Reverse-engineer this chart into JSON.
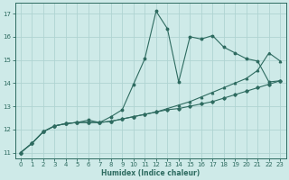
{
  "xlabel": "Humidex (Indice chaleur)",
  "ylabel": "",
  "bg_color": "#ceeae8",
  "grid_color": "#afd4d2",
  "line_color": "#2e6b60",
  "xlim": [
    -0.5,
    23.5
  ],
  "ylim": [
    10.75,
    17.45
  ],
  "xticks": [
    0,
    1,
    2,
    3,
    4,
    5,
    6,
    7,
    8,
    9,
    10,
    11,
    12,
    13,
    14,
    15,
    16,
    17,
    18,
    19,
    20,
    21,
    22,
    23
  ],
  "yticks": [
    11,
    12,
    13,
    14,
    15,
    16,
    17
  ],
  "line1_x": [
    0,
    1,
    2,
    3,
    4,
    5,
    6,
    7,
    8,
    9,
    10,
    11,
    12,
    13,
    14,
    15,
    16,
    17,
    18,
    19,
    20,
    21,
    22,
    23
  ],
  "line1_y": [
    11.0,
    11.4,
    11.9,
    12.15,
    12.25,
    12.3,
    12.4,
    12.3,
    12.55,
    12.85,
    13.95,
    15.05,
    17.1,
    16.35,
    14.05,
    16.0,
    15.9,
    16.05,
    15.55,
    15.3,
    15.05,
    14.95,
    14.05,
    14.1
  ],
  "line2_x": [
    0,
    1,
    2,
    3,
    4,
    5,
    6,
    7,
    8,
    9,
    10,
    11,
    12,
    13,
    14,
    15,
    16,
    17,
    18,
    19,
    20,
    21,
    22,
    23
  ],
  "line2_y": [
    11.0,
    11.4,
    11.9,
    12.15,
    12.25,
    12.3,
    12.3,
    12.3,
    12.35,
    12.45,
    12.55,
    12.65,
    12.75,
    12.9,
    13.05,
    13.2,
    13.4,
    13.6,
    13.8,
    14.0,
    14.2,
    14.55,
    15.3,
    14.95
  ],
  "line3_x": [
    0,
    1,
    2,
    3,
    4,
    5,
    6,
    7,
    8,
    9,
    10,
    11,
    12,
    13,
    14,
    15,
    16,
    17,
    18,
    19,
    20,
    21,
    22,
    23
  ],
  "line3_y": [
    11.0,
    11.4,
    11.9,
    12.15,
    12.25,
    12.3,
    12.3,
    12.3,
    12.35,
    12.45,
    12.55,
    12.65,
    12.75,
    12.85,
    12.9,
    13.0,
    13.1,
    13.2,
    13.35,
    13.5,
    13.65,
    13.8,
    13.95,
    14.1
  ]
}
